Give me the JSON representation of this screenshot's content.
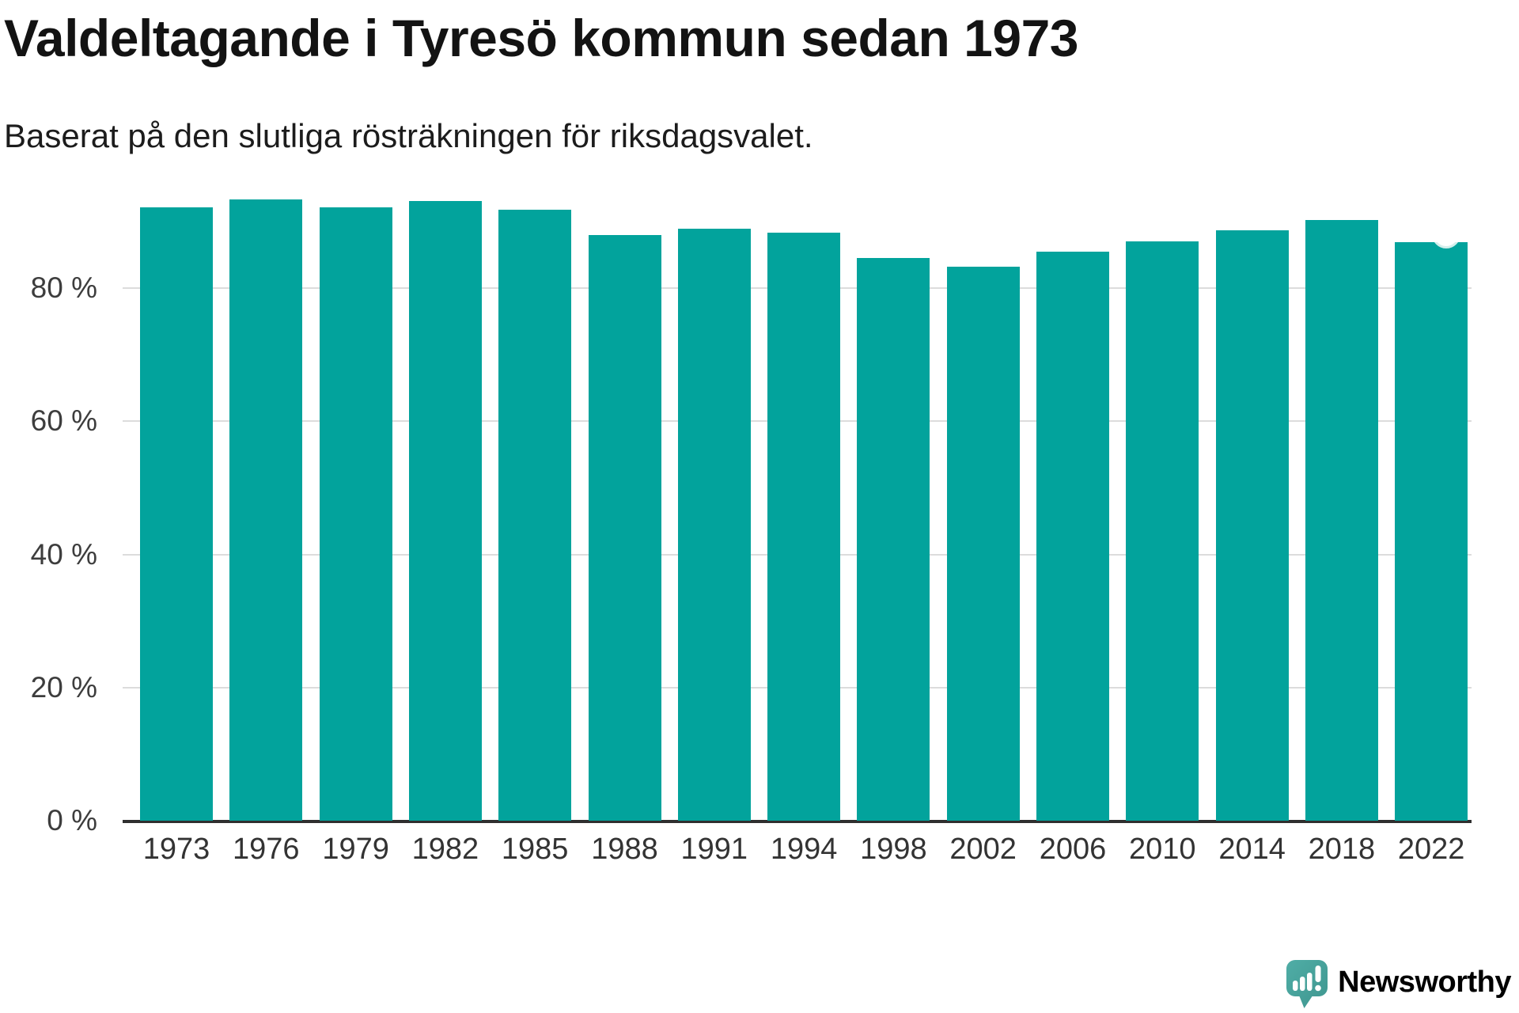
{
  "header": {
    "title": "Valdeltagande i Tyresö kommun sedan 1973",
    "subtitle": "Baserat på den slutliga rösträkningen för riksdagsvalet."
  },
  "chart_data": {
    "type": "bar",
    "title": "Valdeltagande i Tyresö kommun sedan 1973",
    "subtitle": "Baserat på den slutliga rösträkningen för riksdagsvalet.",
    "categories": [
      "1973",
      "1976",
      "1979",
      "1982",
      "1985",
      "1988",
      "1991",
      "1994",
      "1998",
      "2002",
      "2006",
      "2010",
      "2014",
      "2018",
      "2022"
    ],
    "values": [
      92.2,
      93.4,
      92.2,
      93.1,
      91.8,
      88.0,
      89.0,
      88.4,
      84.5,
      83.2,
      85.5,
      87.0,
      88.7,
      90.2,
      86.9
    ],
    "unit": "%",
    "xlabel": "",
    "ylabel": "",
    "ylim": [
      0,
      100
    ],
    "yticks": [
      {
        "value": 0,
        "label": "0 %"
      },
      {
        "value": 20,
        "label": "20 %"
      },
      {
        "value": 40,
        "label": "40 %"
      },
      {
        "value": 60,
        "label": "60 %"
      },
      {
        "value": 80,
        "label": "80 %"
      }
    ],
    "grid": true,
    "legend": "none",
    "bar_color": "#02a39c",
    "gridline_color": "#dcdcdc",
    "axis_line_color": "#2f2f2f",
    "annotation": {
      "category": "2022",
      "marker": "circle-notch",
      "marker_color": "#ffffff"
    }
  },
  "branding": {
    "logo_text": "Newsworthy",
    "logo_color": "#41a09a",
    "logo_icon": "newsworthy-bubble-chart-icon"
  }
}
